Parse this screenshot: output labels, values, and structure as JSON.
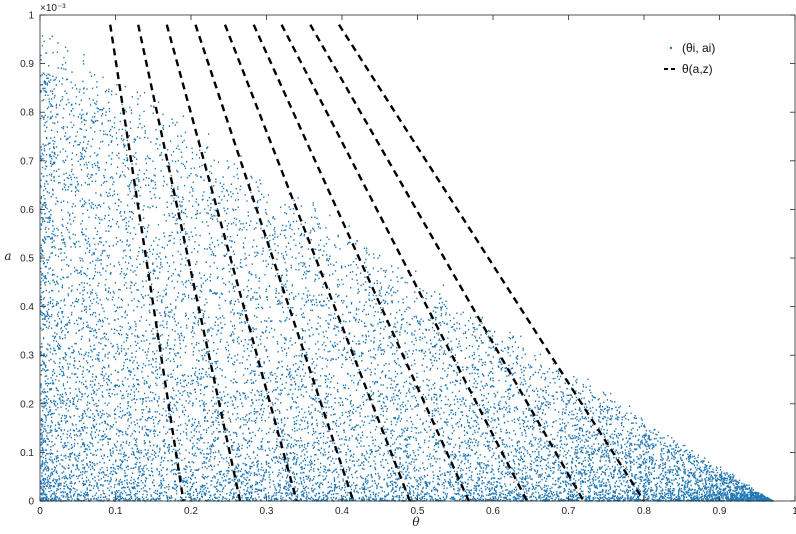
{
  "chart_data": {
    "type": "scatter",
    "title": "",
    "xlabel": "θ",
    "ylabel": "a",
    "xlim": [
      0,
      1
    ],
    "ylim": [
      0,
      0.001
    ],
    "y_exponent_label": "×10⁻³",
    "x_ticks": [
      "0",
      "0.1",
      "0.2",
      "0.3",
      "0.4",
      "0.5",
      "0.6",
      "0.7",
      "0.8",
      "0.9",
      "1"
    ],
    "y_ticks": [
      "0",
      "0.1",
      "0.2",
      "0.3",
      "0.4",
      "0.5",
      "0.6",
      "0.7",
      "0.8",
      "0.9",
      "1"
    ],
    "grid": false,
    "legend_position": "top-right",
    "colors": {
      "scatter": "#1f77b4",
      "curves": "#000000",
      "axis": "#262626"
    },
    "series": [
      {
        "name": "(θi, ai)",
        "kind": "scatter",
        "description_points": "dense cloud of sampled points filling the triangle-like region below the line from θ=0,a≈1e-3 to θ≈0.97,a=0",
        "envelope": {
          "theta_at_a_zero": 0.97,
          "a_at_theta_zero": 0.001
        }
      },
      {
        "name": "θ(a,z)",
        "kind": "dashed-lines",
        "curves": [
          {
            "theta_top": 0.093,
            "theta_bottom": 0.19
          },
          {
            "theta_top": 0.13,
            "theta_bottom": 0.265
          },
          {
            "theta_top": 0.168,
            "theta_bottom": 0.34
          },
          {
            "theta_top": 0.206,
            "theta_bottom": 0.415
          },
          {
            "theta_top": 0.245,
            "theta_bottom": 0.49
          },
          {
            "theta_top": 0.283,
            "theta_bottom": 0.568
          },
          {
            "theta_top": 0.32,
            "theta_bottom": 0.645
          },
          {
            "theta_top": 0.358,
            "theta_bottom": 0.72
          },
          {
            "theta_top": 0.396,
            "theta_bottom": 0.8
          }
        ],
        "a_top": 0.00098,
        "a_bottom": 0
      }
    ]
  }
}
